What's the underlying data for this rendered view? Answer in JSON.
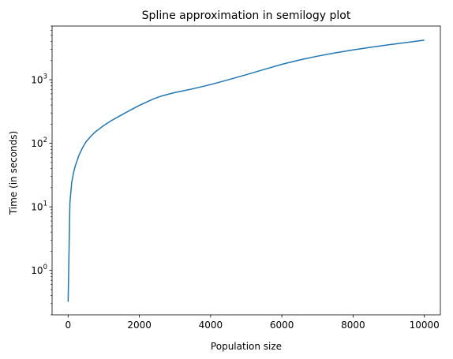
{
  "chart_data": {
    "type": "line",
    "title": "Spline approximation in semilogy plot",
    "xlabel": "Population size",
    "ylabel": "Time (in seconds)",
    "yscale": "log",
    "xlim": [
      -450,
      10450
    ],
    "ylim": [
      0.2,
      7000
    ],
    "grid": false,
    "x_ticks": [
      0,
      2000,
      4000,
      6000,
      8000,
      10000
    ],
    "y_ticks": [
      {
        "value": 1,
        "base": "10",
        "exp": "0"
      },
      {
        "value": 10,
        "base": "10",
        "exp": "1"
      },
      {
        "value": 100,
        "base": "10",
        "exp": "2"
      },
      {
        "value": 1000,
        "base": "10",
        "exp": "3"
      }
    ],
    "series": [
      {
        "color": "#1f77b4",
        "x": [
          0,
          50,
          100,
          150,
          200,
          300,
          400,
          500,
          600,
          700,
          800,
          1000,
          1200,
          1400,
          1600,
          1800,
          2000,
          2200,
          2400,
          2600,
          2800,
          3000,
          3500,
          4000,
          4500,
          5000,
          5500,
          6000,
          6500,
          7000,
          7500,
          8000,
          8500,
          9000,
          9500,
          10000
        ],
        "y": [
          0.32,
          11.5,
          24,
          34,
          44,
          64,
          84,
          105,
          122,
          140,
          157,
          190,
          225,
          260,
          300,
          345,
          395,
          445,
          500,
          550,
          590,
          630,
          720,
          840,
          1000,
          1200,
          1450,
          1750,
          2050,
          2350,
          2650,
          2950,
          3250,
          3550,
          3850,
          4200
        ]
      }
    ]
  }
}
